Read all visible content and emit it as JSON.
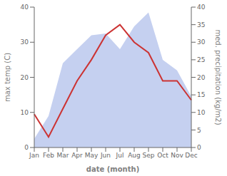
{
  "chart_data": {
    "type": "line",
    "categories": [
      "Jan",
      "Feb",
      "Mar",
      "Apr",
      "May",
      "Jun",
      "Jul",
      "Aug",
      "Sep",
      "Oct",
      "Nov",
      "Dec"
    ],
    "series": [
      {
        "type": "area",
        "axis": "y2",
        "color": "#c5d0f0",
        "values": [
          2.5,
          9.0,
          24.0,
          28.0,
          32.0,
          32.5,
          28.0,
          34.5,
          38.5,
          25.0,
          22.0,
          14.5
        ]
      },
      {
        "type": "line",
        "color": "#cc3333",
        "values": [
          9.5,
          3.0,
          11.0,
          19.0,
          25.0,
          32.0,
          35.0,
          30.0,
          27.0,
          19.0,
          19.0,
          13.5
        ]
      }
    ],
    "xlabel": "date (month)",
    "ylabel": "max temp (C)",
    "y2label": "med. precipitation (kg/m2)",
    "ylim": [
      0,
      40
    ],
    "yticks": [
      0,
      10,
      20,
      30,
      40
    ],
    "y2lim": [
      0,
      40
    ],
    "y2ticks": [
      0,
      5,
      10,
      15,
      20,
      25,
      30,
      35,
      40
    ]
  }
}
